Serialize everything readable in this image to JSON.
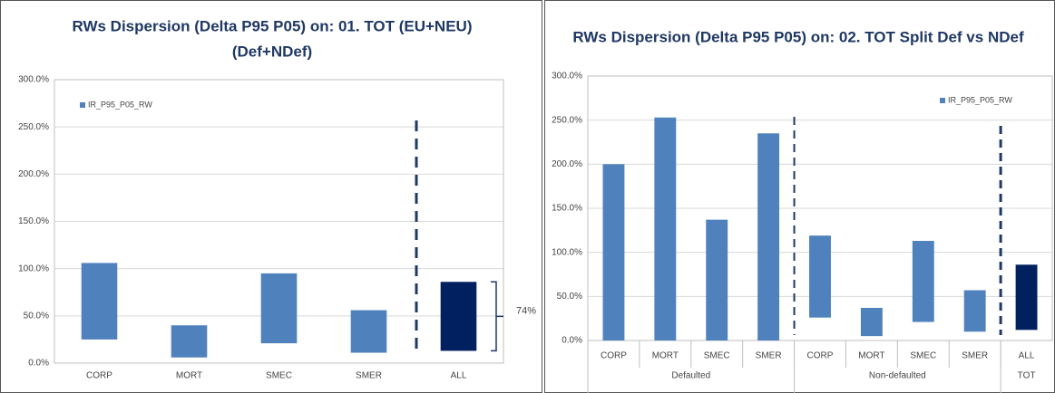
{
  "chart_data": [
    {
      "type": "floating-bar",
      "title": [
        "RWs Dispersion (Delta P95 P05) on: 01. TOT (EU+NEU)",
        "(Def+NDef)"
      ],
      "categories": [
        "CORP",
        "MORT",
        "SMEC",
        "SMER",
        "ALL"
      ],
      "series": [
        {
          "name": "IR_P95_P05_RW",
          "color": "#4f81bd",
          "low": [
            25,
            6,
            21,
            11,
            13
          ],
          "high": [
            106,
            40,
            95,
            56,
            86
          ],
          "colors": [
            "#4f81bd",
            "#4f81bd",
            "#4f81bd",
            "#4f81bd",
            "#002060"
          ]
        }
      ],
      "ylim": [
        0,
        300
      ],
      "yticks": [
        {
          "value": 0,
          "label": "0.0%"
        },
        {
          "value": 50,
          "label": "50.0%"
        },
        {
          "value": 100,
          "label": "100.0%"
        },
        {
          "value": 150,
          "label": "150.0%"
        },
        {
          "value": 200,
          "label": "200.0%"
        },
        {
          "value": 250,
          "label": "250.0%"
        },
        {
          "value": 300,
          "label": "300.0%"
        }
      ],
      "grid": true,
      "annotation": "74%"
    },
    {
      "type": "floating-bar",
      "title": [
        "RWs Dispersion (Delta P95 P05) on: 02. TOT Split Def vs NDef"
      ],
      "categories": [
        "CORP",
        "MORT",
        "SMEC",
        "SMER",
        "CORP",
        "MORT",
        "SMEC",
        "SMER",
        "ALL"
      ],
      "groups": [
        {
          "name": "Defaulted",
          "size": 4
        },
        {
          "name": "Non-defaulted",
          "size": 4
        },
        {
          "name": "TOT",
          "size": 1
        }
      ],
      "series": [
        {
          "name": "IR_P95_P05_RW",
          "color": "#4f81bd",
          "low": [
            0,
            0,
            0,
            0,
            26,
            5,
            21,
            10,
            12
          ],
          "high": [
            200,
            253,
            137,
            235,
            119,
            37,
            113,
            57,
            86
          ],
          "colors": [
            "#4f81bd",
            "#4f81bd",
            "#4f81bd",
            "#4f81bd",
            "#4f81bd",
            "#4f81bd",
            "#4f81bd",
            "#4f81bd",
            "#002060"
          ]
        }
      ],
      "ylim": [
        0,
        300
      ],
      "yticks": [
        {
          "value": 0,
          "label": "0.0%"
        },
        {
          "value": 50,
          "label": "50.0%"
        },
        {
          "value": 100,
          "label": "100.0%"
        },
        {
          "value": 150,
          "label": "150.0%"
        },
        {
          "value": 200,
          "label": "200.0%"
        },
        {
          "value": 250,
          "label": "250.0%"
        },
        {
          "value": 300,
          "label": "300.0%"
        }
      ],
      "grid": true
    }
  ]
}
